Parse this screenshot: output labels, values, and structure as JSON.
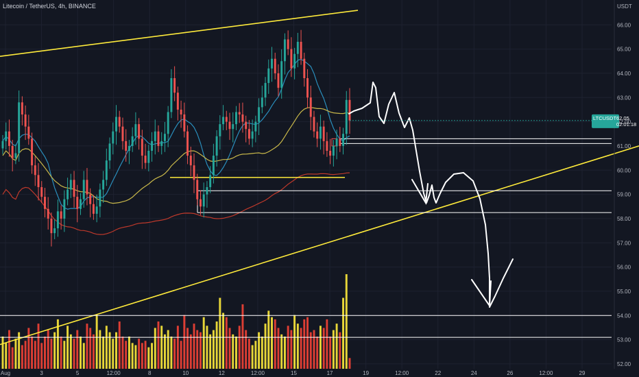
{
  "header": {
    "title": "Litecoin / TetherUS, 4h, BINANCE"
  },
  "axis": {
    "currency_label": "USDT"
  },
  "price_tag": {
    "symbol": "LTCUSDT",
    "price": "62.05",
    "countdown": "02:01:18",
    "color": "#26a69a"
  },
  "colors": {
    "background": "#131722",
    "up": "#26a69a",
    "down": "#ef5350",
    "trendline": "#ffeb3b",
    "volume_up": "#ffeb3b",
    "volume_down": "#f44336",
    "ma_blue": "#2a8fbd",
    "ma_yellow": "#c9b84a",
    "ma_red": "#c0392b",
    "drawing": "#ffffff"
  },
  "chart_data": {
    "type": "candlestick",
    "symbol": "LTCUSDT",
    "interval": "4h",
    "exchange": "BINANCE",
    "ylim": [
      51.8,
      66.8
    ],
    "y_ticks": [
      52,
      53,
      54,
      55,
      56,
      57,
      58,
      59,
      60,
      61,
      62,
      63,
      64,
      65,
      66
    ],
    "x_tick_labels": [
      "Aug",
      "3",
      "5",
      "12:00",
      "8",
      "10",
      "12",
      "12:00",
      "15",
      "17",
      "19",
      "12:00",
      "22",
      "24",
      "26",
      "12:00",
      "29"
    ],
    "last_price": 62.05,
    "horizontal_levels": [
      61.3,
      61.1,
      59.15,
      58.25,
      54.0,
      53.1
    ],
    "short_support_line": 59.7,
    "grid": true,
    "series": [
      {
        "name": "candles",
        "values": [
          61.2,
          61.6,
          61.0,
          60.5,
          60.7,
          62.8,
          62.3,
          61.8,
          61.3,
          60.2,
          59.8,
          59.3,
          58.9,
          58.4,
          58.0,
          57.4,
          57.6,
          58.3,
          58.0,
          58.8,
          59.2,
          59.6,
          58.9,
          58.4,
          58.8,
          59.6,
          59.0,
          58.6,
          58.2,
          58.5,
          59.2,
          59.6,
          60.4,
          61.1,
          61.6,
          62.2,
          61.8,
          61.2,
          60.8,
          61.0,
          61.4,
          61.9,
          61.3,
          60.6,
          60.3,
          60.8,
          61.2,
          61.6,
          61.0,
          61.2,
          61.5,
          62.4,
          63.8,
          63.2,
          62.5,
          62.3,
          61.6,
          60.6,
          60.2,
          59.6,
          58.8,
          58.5,
          59.0,
          59.3,
          59.8,
          60.6,
          61.4,
          61.9,
          62.2,
          62.0,
          61.7,
          61.9,
          62.4,
          62.3,
          62.0,
          61.7,
          61.3,
          61.6,
          62.0,
          62.6,
          63.0,
          63.6,
          64.2,
          64.6,
          64.0,
          63.4,
          64.5,
          65.4,
          65.0,
          64.2,
          64.8,
          65.3,
          64.6,
          63.8,
          63.0,
          62.2,
          61.6,
          61.3,
          61.8,
          61.2,
          60.8,
          60.6,
          61.0,
          61.3,
          61.0,
          61.5,
          62.9,
          62.05
        ]
      },
      {
        "name": "volume",
        "values": [
          30,
          24,
          36,
          20,
          28,
          34,
          22,
          26,
          38,
          30,
          26,
          42,
          24,
          30,
          36,
          28,
          34,
          46,
          30,
          26,
          40,
          32,
          28,
          36,
          30,
          24,
          42,
          38,
          32,
          50,
          36,
          30,
          40,
          34,
          28,
          34,
          44,
          30,
          26,
          30,
          24,
          22,
          28,
          24,
          26,
          20,
          24,
          38,
          44,
          40,
          32,
          36,
          30,
          28,
          40,
          26,
          50,
          38,
          32,
          42,
          36,
          34,
          48,
          40,
          32,
          36,
          44,
          66,
          52,
          48,
          38,
          32,
          30,
          40,
          60,
          36,
          28,
          22,
          26,
          34,
          30,
          42,
          54,
          48,
          46,
          38,
          32,
          30,
          40,
          36,
          50,
          42,
          38,
          46,
          48,
          34,
          36,
          30,
          40,
          38,
          46,
          30,
          36,
          42,
          34,
          66,
          88,
          10
        ]
      }
    ]
  }
}
